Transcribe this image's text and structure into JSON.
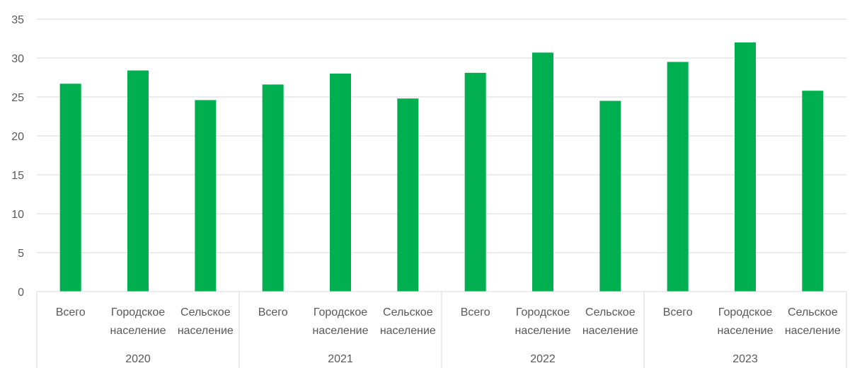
{
  "chart_data": {
    "type": "bar",
    "title": "",
    "xlabel": "",
    "ylabel": "",
    "ylim": [
      0,
      35
    ],
    "yticks": [
      "0",
      "5",
      "10",
      "15",
      "20",
      "25",
      "30",
      "35"
    ],
    "grid": true,
    "legend": "none",
    "bar_color": "#00B050",
    "groups": [
      {
        "label": "2020",
        "categories": [
          {
            "line1": "Всего",
            "line2": "",
            "value": 26.7
          },
          {
            "line1": "Городское",
            "line2": "население",
            "value": 28.4
          },
          {
            "line1": "Сельское",
            "line2": "население",
            "value": 24.6
          }
        ]
      },
      {
        "label": "2021",
        "categories": [
          {
            "line1": "Всего",
            "line2": "",
            "value": 26.6
          },
          {
            "line1": "Городское",
            "line2": "население",
            "value": 28.0
          },
          {
            "line1": "Сельское",
            "line2": "население",
            "value": 24.8
          }
        ]
      },
      {
        "label": "2022",
        "categories": [
          {
            "line1": "Всего",
            "line2": "",
            "value": 28.1
          },
          {
            "line1": "Городское",
            "line2": "население",
            "value": 30.7
          },
          {
            "line1": "Сельское",
            "line2": "население",
            "value": 24.5
          }
        ]
      },
      {
        "label": "2023",
        "categories": [
          {
            "line1": "Всего",
            "line2": "",
            "value": 29.5
          },
          {
            "line1": "Городское",
            "line2": "население",
            "value": 32.0
          },
          {
            "line1": "Сельское",
            "line2": "население",
            "value": 25.8
          }
        ]
      }
    ]
  }
}
